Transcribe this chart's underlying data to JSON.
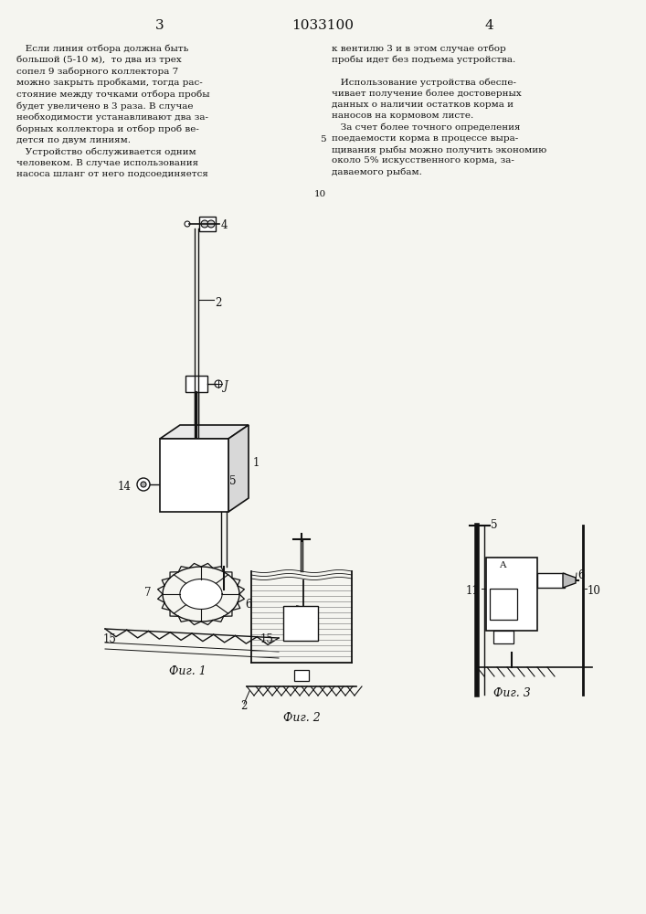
{
  "page_number_left": "3",
  "page_number_center": "1033100",
  "page_number_right": "4",
  "text_left": "   Если линия отбора должна быть\nбольшой (5-10 м),  то два из трех\nсопел 9 заборного коллектора 7\nможно закрыть пробками, тогда рас-\nстояние между точками отбора пробы\nбудет увеличено в 3 раза. В случае\nнеобходимости устанавливают два за-\nборных коллектора и отбор проб ве-\nдется по двум линиям.\n   Устройство обслуживается одним\nчеловеком. В случае использования\nнасоса шланг от него подсоединяется",
  "text_right": "к вентилю 3 и в этом случае отбор\nпробы идет без подъема устройства.\n\n   Использование устройства обеспе-\nчивает получение более достоверных\nданных о наличии остатков корма и\nнаносов на кормовом листе.\n   За счет более точного определения\nпоедаемости корма в процессе выра-\nщивания рыбы можно получить экономию\nоколо 5% искусственного корма, за-\nдаваемого рыбам.",
  "line_num_5": "5",
  "line_num_10": "10",
  "fig1_label": "Фиг. 1",
  "fig2_label": "Фиг. 2",
  "fig3_label": "Фиг. 3",
  "bg_color": "#f5f5f0",
  "text_color": "#111111",
  "line_color": "#111111"
}
